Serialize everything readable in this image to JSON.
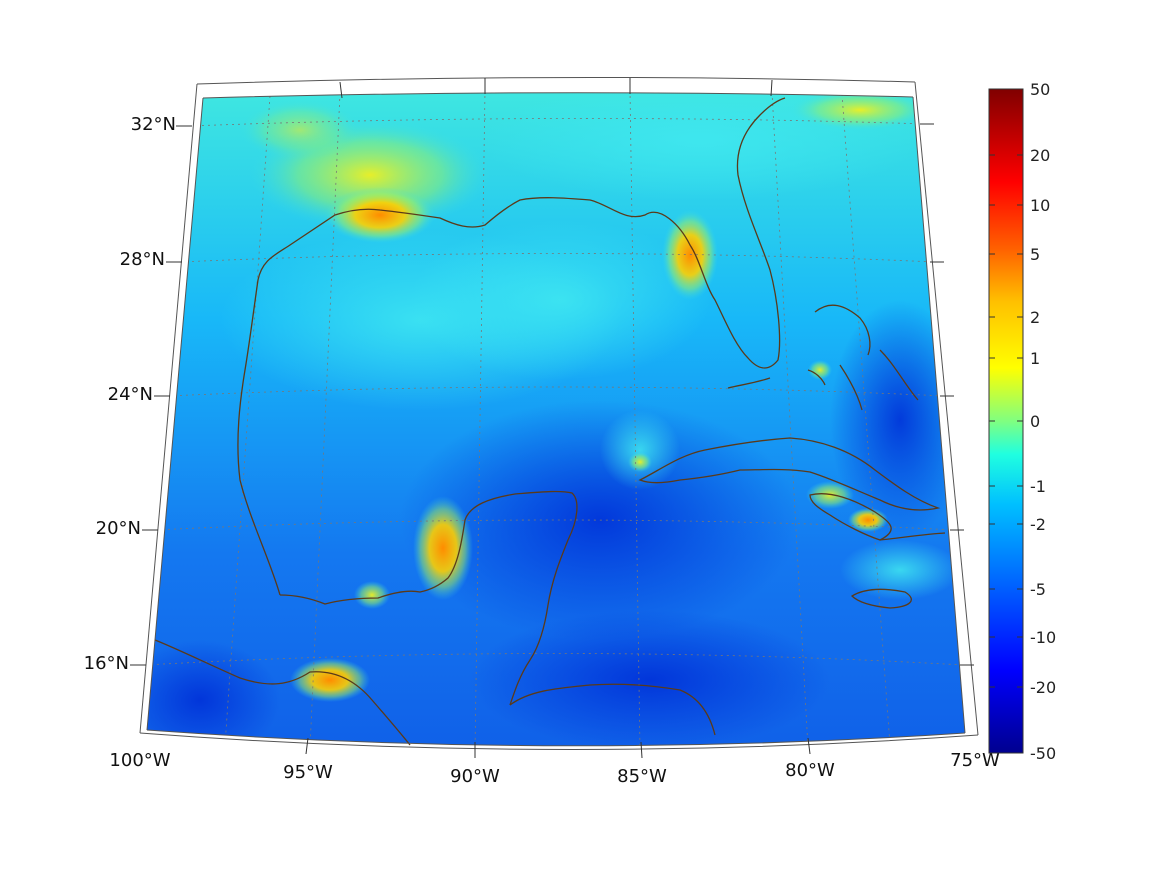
{
  "map": {
    "projection": "conic",
    "region": "Gulf of Mexico and Caribbean",
    "lon_range": [
      -100,
      -75
    ],
    "lat_range": [
      14,
      33
    ],
    "graticule": "dotted",
    "coastline_color": "#5a3a1a",
    "lon_ticks": [
      {
        "value": -100,
        "label": "100°W"
      },
      {
        "value": -95,
        "label": "95°W"
      },
      {
        "value": -90,
        "label": "90°W"
      },
      {
        "value": -85,
        "label": "85°W"
      },
      {
        "value": -80,
        "label": "80°W"
      },
      {
        "value": -75,
        "label": "75°W"
      }
    ],
    "lat_ticks": [
      {
        "value": 32,
        "label": "32°N"
      },
      {
        "value": 28,
        "label": "28°N"
      },
      {
        "value": 24,
        "label": "24°N"
      },
      {
        "value": 20,
        "label": "20°N"
      },
      {
        "value": 16,
        "label": "16°N"
      }
    ]
  },
  "colorbar": {
    "colormap": "jet",
    "labels": [
      "50",
      "20",
      "10",
      "5",
      "2",
      "1",
      "0",
      "-1",
      "-2",
      "-5",
      "-10",
      "-20",
      "-50"
    ],
    "colors": [
      "#00008f",
      "#0000ff",
      "#0080ff",
      "#00ffff",
      "#80ff80",
      "#ffff00",
      "#ff8000",
      "#ff0000",
      "#800000"
    ]
  }
}
